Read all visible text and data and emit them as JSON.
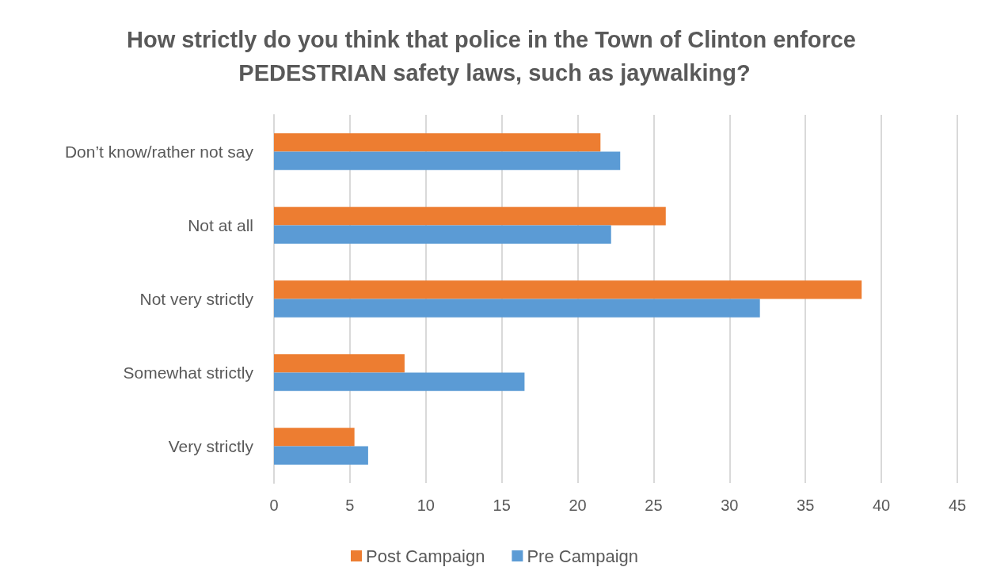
{
  "chart_data": {
    "type": "bar",
    "orientation": "horizontal",
    "title": "How strictly do you think that police in the Town of Clinton enforce PEDESTRIAN safety laws, such as jaywalking?",
    "categories": [
      "Don’t know/rather not say",
      "Not at all",
      "Not very strictly",
      "Somewhat strictly",
      "Very strictly"
    ],
    "series": [
      {
        "name": "Post Campaign",
        "color": "#ed7d31",
        "values": [
          21.5,
          25.8,
          38.7,
          8.6,
          5.3
        ]
      },
      {
        "name": "Pre Campaign",
        "color": "#5b9bd5",
        "values": [
          22.8,
          22.2,
          32.0,
          16.5,
          6.2
        ]
      }
    ],
    "xlim": [
      0,
      45
    ],
    "xticks": [
      0,
      5,
      10,
      15,
      20,
      25,
      30,
      35,
      40,
      45
    ],
    "grid": "x",
    "legend": "bottom"
  }
}
